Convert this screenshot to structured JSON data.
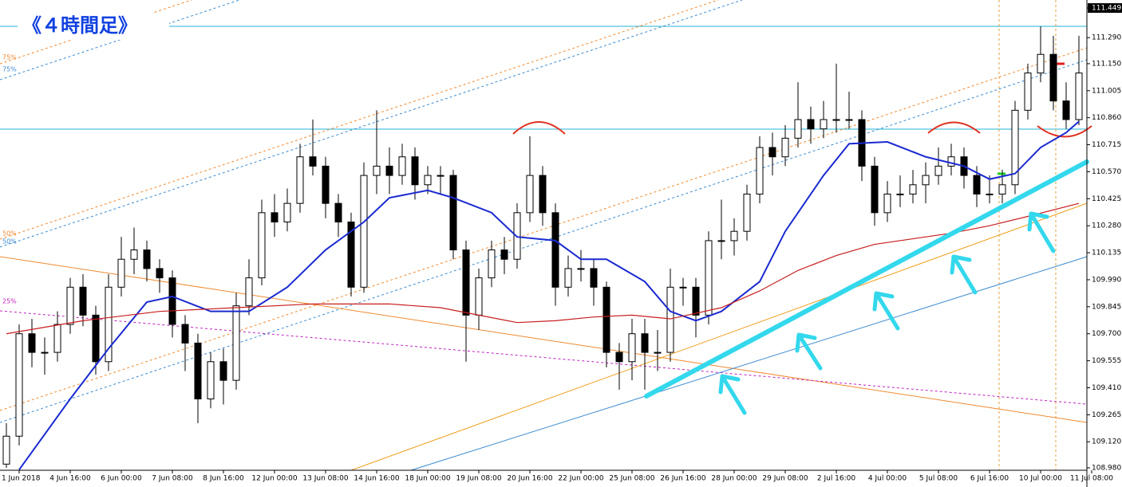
{
  "chart_data": {
    "type": "candlestick",
    "title": "《４時間足》",
    "title_color": "#1040e0",
    "x_labels": [
      "1 Jun 2018",
      "4 Jun 16:00",
      "6 Jun 00:00",
      "7 Jun 08:00",
      "8 Jun 16:00",
      "12 Jun 00:00",
      "13 Jun 08:00",
      "14 Jun 16:00",
      "18 Jun 00:00",
      "19 Jun 08:00",
      "20 Jun 16:00",
      "22 Jun 00:00",
      "25 Jun 08:00",
      "26 Jun 16:00",
      "28 Jun 00:00",
      "29 Jun 08:00",
      "2 Jul 16:00",
      "4 Jul 00:00",
      "5 Jul 08:00",
      "6 Jul 16:00",
      "10 Jul 00:00",
      "11 Jul 08:00"
    ],
    "level_labels": [
      {
        "text": "75%",
        "color": "#f08a30"
      },
      {
        "text": "75%",
        "color": "#3a8ad0"
      },
      {
        "text": "50%",
        "color": "#f08a30"
      },
      {
        "text": "50%",
        "color": "#3a8ad0"
      },
      {
        "text": "25%",
        "color": "#c020c0"
      }
    ],
    "ylim": [
      108.967,
      111.492
    ],
    "yticks": [
      111.449,
      {
        "value": 111.29,
        "label": "111.290"
      },
      {
        "value": 111.15,
        "label": "111.150"
      },
      111.005,
      {
        "value": 110.86,
        "label": "110.860"
      },
      110.715,
      {
        "value": 110.57,
        "label": "110.570"
      },
      110.425,
      {
        "value": 110.28,
        "label": "110.280"
      },
      110.135,
      {
        "value": 109.99,
        "label": "109.990"
      },
      109.845,
      {
        "value": 109.7,
        "label": "109.700"
      },
      109.555,
      {
        "value": 109.41,
        "label": "109.410"
      },
      109.265,
      {
        "value": 109.12,
        "label": "109.120"
      },
      {
        "value": 108.98,
        "label": "108.980"
      }
    ],
    "up_color": "#ffffff",
    "down_color": "#000000",
    "candles": [
      [
        109.0,
        109.22,
        108.98,
        109.15
      ],
      [
        109.15,
        109.75,
        109.1,
        109.7
      ],
      [
        109.7,
        109.78,
        109.52,
        109.6
      ],
      [
        109.6,
        109.68,
        109.48,
        109.6
      ],
      [
        109.6,
        109.82,
        109.55,
        109.75
      ],
      [
        109.75,
        110.0,
        109.7,
        109.95
      ],
      [
        109.95,
        110.02,
        109.74,
        109.8
      ],
      [
        109.8,
        109.85,
        109.48,
        109.55
      ],
      [
        109.55,
        110.02,
        109.5,
        109.95
      ],
      [
        109.95,
        110.22,
        109.9,
        110.1
      ],
      [
        110.1,
        110.27,
        110.02,
        110.15
      ],
      [
        110.15,
        110.2,
        109.98,
        110.05
      ],
      [
        110.05,
        110.1,
        109.92,
        110.0
      ],
      [
        110.0,
        110.04,
        109.68,
        109.75
      ],
      [
        109.75,
        109.8,
        109.5,
        109.65
      ],
      [
        109.65,
        109.7,
        109.22,
        109.35
      ],
      [
        109.35,
        109.6,
        109.3,
        109.55
      ],
      [
        109.55,
        109.62,
        109.32,
        109.45
      ],
      [
        109.45,
        109.92,
        109.4,
        109.85
      ],
      [
        109.85,
        110.1,
        109.8,
        110.0
      ],
      [
        110.0,
        110.42,
        109.96,
        110.35
      ],
      [
        110.35,
        110.45,
        110.22,
        110.3
      ],
      [
        110.3,
        110.48,
        110.25,
        110.4
      ],
      [
        110.4,
        110.72,
        110.35,
        110.65
      ],
      [
        110.65,
        110.85,
        110.55,
        110.6
      ],
      [
        110.6,
        110.65,
        110.32,
        110.4
      ],
      [
        110.4,
        110.45,
        110.22,
        110.3
      ],
      [
        110.3,
        110.35,
        109.9,
        109.95
      ],
      [
        109.95,
        110.62,
        109.92,
        110.55
      ],
      [
        110.55,
        110.9,
        110.45,
        110.6
      ],
      [
        110.6,
        110.7,
        110.45,
        110.55
      ],
      [
        110.55,
        110.72,
        110.5,
        110.65
      ],
      [
        110.65,
        110.7,
        110.42,
        110.5
      ],
      [
        110.5,
        110.6,
        110.45,
        110.55
      ],
      [
        110.55,
        110.6,
        110.45,
        110.55
      ],
      [
        110.55,
        110.58,
        110.1,
        110.15
      ],
      [
        110.15,
        110.2,
        109.55,
        109.8
      ],
      [
        109.8,
        110.05,
        109.72,
        110.0
      ],
      [
        110.0,
        110.2,
        109.95,
        110.15
      ],
      [
        110.15,
        110.22,
        110.02,
        110.1
      ],
      [
        110.1,
        110.4,
        110.05,
        110.35
      ],
      [
        110.35,
        110.76,
        110.3,
        110.55
      ],
      [
        110.55,
        110.6,
        110.28,
        110.35
      ],
      [
        110.35,
        110.4,
        109.85,
        109.95
      ],
      [
        109.95,
        110.12,
        109.9,
        110.05
      ],
      [
        110.05,
        110.15,
        109.98,
        110.05
      ],
      [
        110.05,
        110.1,
        109.85,
        109.95
      ],
      [
        109.95,
        109.98,
        109.52,
        109.6
      ],
      [
        109.6,
        109.65,
        109.4,
        109.55
      ],
      [
        109.55,
        109.78,
        109.45,
        109.7
      ],
      [
        109.7,
        109.78,
        109.4,
        109.6
      ],
      [
        109.6,
        109.72,
        109.5,
        109.6
      ],
      [
        109.6,
        110.05,
        109.55,
        109.95
      ],
      [
        109.95,
        110.0,
        109.85,
        109.95
      ],
      [
        109.95,
        110.0,
        109.68,
        109.8
      ],
      [
        109.8,
        110.25,
        109.75,
        110.2
      ],
      [
        110.2,
        110.42,
        110.1,
        110.2
      ],
      [
        110.2,
        110.32,
        110.12,
        110.25
      ],
      [
        110.25,
        110.5,
        110.2,
        110.45
      ],
      [
        110.45,
        110.76,
        110.4,
        110.7
      ],
      [
        110.7,
        110.78,
        110.55,
        110.65
      ],
      [
        110.65,
        110.82,
        110.6,
        110.75
      ],
      [
        110.75,
        111.05,
        110.7,
        110.85
      ],
      [
        110.85,
        110.92,
        110.72,
        110.8
      ],
      [
        110.8,
        110.95,
        110.75,
        110.85
      ],
      [
        110.85,
        111.15,
        110.78,
        110.85
      ],
      [
        110.85,
        111.0,
        110.8,
        110.85
      ],
      [
        110.85,
        110.9,
        110.52,
        110.6
      ],
      [
        110.6,
        110.65,
        110.28,
        110.35
      ],
      [
        110.35,
        110.52,
        110.3,
        110.45
      ],
      [
        110.45,
        110.55,
        110.38,
        110.45
      ],
      [
        110.45,
        110.58,
        110.4,
        110.5
      ],
      [
        110.5,
        110.62,
        110.4,
        110.55
      ],
      [
        110.55,
        110.7,
        110.5,
        110.6
      ],
      [
        110.6,
        110.72,
        110.55,
        110.65
      ],
      [
        110.65,
        110.7,
        110.48,
        110.55
      ],
      [
        110.55,
        110.6,
        110.38,
        110.45
      ],
      [
        110.45,
        110.55,
        110.4,
        110.45
      ],
      [
        110.45,
        110.58,
        110.4,
        110.5
      ],
      [
        110.5,
        110.95,
        110.45,
        110.9
      ],
      [
        110.9,
        111.15,
        110.85,
        111.1
      ],
      [
        111.1,
        111.35,
        111.05,
        111.2
      ],
      [
        111.2,
        111.3,
        110.9,
        110.95
      ],
      [
        110.95,
        111.05,
        110.8,
        110.85
      ],
      [
        110.85,
        111.3,
        110.82,
        111.1
      ]
    ],
    "series": [
      {
        "color": "#1a2ad0",
        "x": [
          1,
          5,
          8,
          11,
          13,
          16,
          19,
          22,
          25,
          28,
          30,
          33,
          35,
          38,
          40,
          43,
          45,
          47,
          50,
          52,
          54,
          56,
          59,
          61,
          64,
          66,
          69,
          72,
          75,
          77,
          79,
          81,
          83,
          84
        ],
        "values": [
          108.97,
          109.35,
          109.62,
          109.87,
          109.9,
          109.82,
          109.82,
          109.95,
          110.15,
          110.3,
          110.43,
          110.47,
          110.43,
          110.35,
          110.22,
          110.2,
          110.1,
          110.1,
          109.98,
          109.82,
          109.77,
          109.82,
          109.98,
          110.25,
          110.55,
          110.72,
          110.73,
          110.65,
          110.6,
          110.53,
          110.56,
          110.7,
          110.78,
          110.84
        ]
      },
      {
        "color": "#c81e1e",
        "x": [
          0,
          6,
          12,
          18,
          24,
          30,
          34,
          37,
          40,
          43,
          46,
          49,
          52,
          56,
          59,
          62,
          65,
          68,
          71,
          74,
          77,
          80,
          84
        ],
        "values": [
          109.7,
          109.77,
          109.82,
          109.84,
          109.86,
          109.86,
          109.84,
          109.8,
          109.76,
          109.77,
          109.79,
          109.8,
          109.78,
          109.84,
          109.93,
          110.04,
          110.12,
          110.18,
          110.21,
          110.24,
          110.28,
          110.33,
          110.4
        ]
      }
    ]
  }
}
